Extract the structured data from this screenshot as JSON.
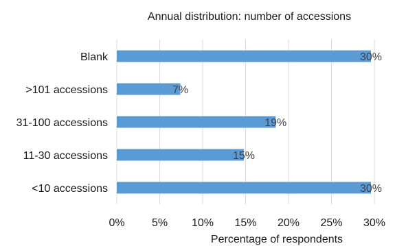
{
  "chart_data": {
    "type": "bar",
    "orientation": "horizontal",
    "title": "Annual distribution: number of accessions",
    "xlabel": "Percentage of respondents",
    "ylabel": "",
    "categories": [
      "<10 accessions",
      "11-30 accessions",
      "31-100 accessions",
      ">101 accessions",
      "Blank"
    ],
    "values": [
      29.6,
      14.8,
      18.5,
      7.4,
      29.6
    ],
    "data_labels": [
      "30%",
      "15%",
      "19%",
      "7%",
      "30%"
    ],
    "xlim": [
      0,
      30
    ],
    "x_ticks": [
      "0%",
      "5%",
      "10%",
      "15%",
      "20%",
      "25%",
      "30%"
    ],
    "grid": true,
    "legend": "none",
    "bar_color": "#5b9bd5"
  }
}
